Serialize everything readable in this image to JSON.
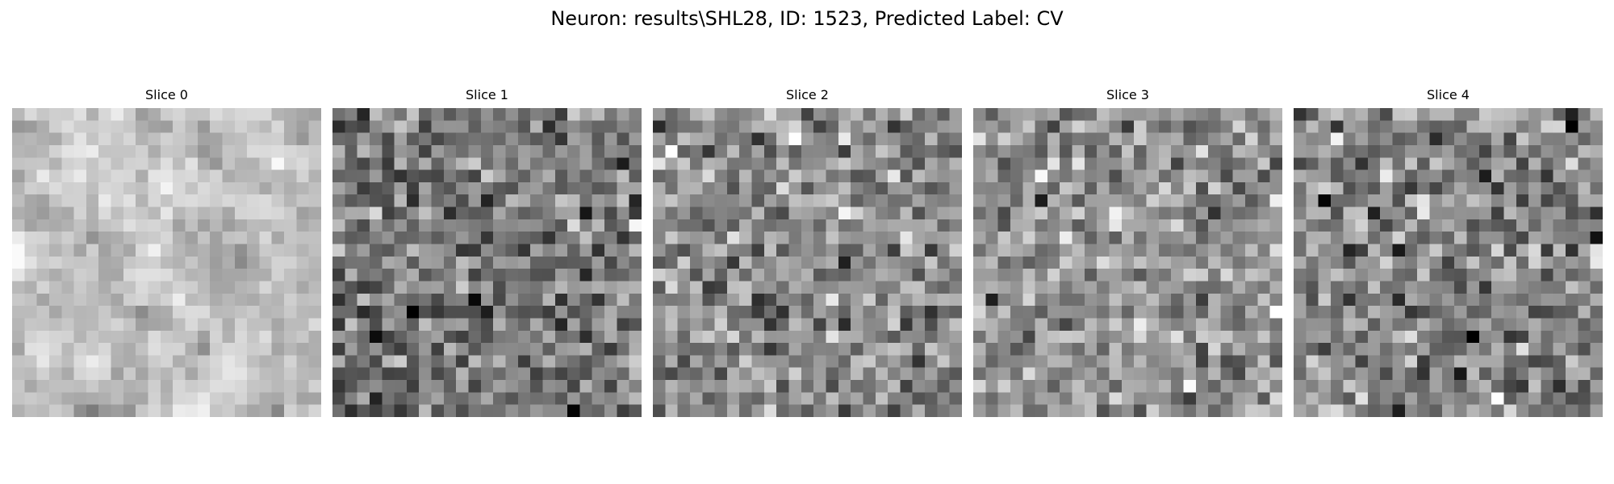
{
  "figure": {
    "title": "Neuron: results\\SHL28, ID: 1523, Predicted Label: CV"
  },
  "slices": [
    {
      "label": "Slice 0",
      "mean_gray": 190,
      "contrast": 32
    },
    {
      "label": "Slice 1",
      "mean_gray": 118,
      "contrast": 42
    },
    {
      "label": "Slice 2",
      "mean_gray": 140,
      "contrast": 40
    },
    {
      "label": "Slice 3",
      "mean_gray": 150,
      "contrast": 38
    },
    {
      "label": "Slice 4",
      "mean_gray": 135,
      "contrast": 42
    }
  ],
  "colormap": "gray"
}
